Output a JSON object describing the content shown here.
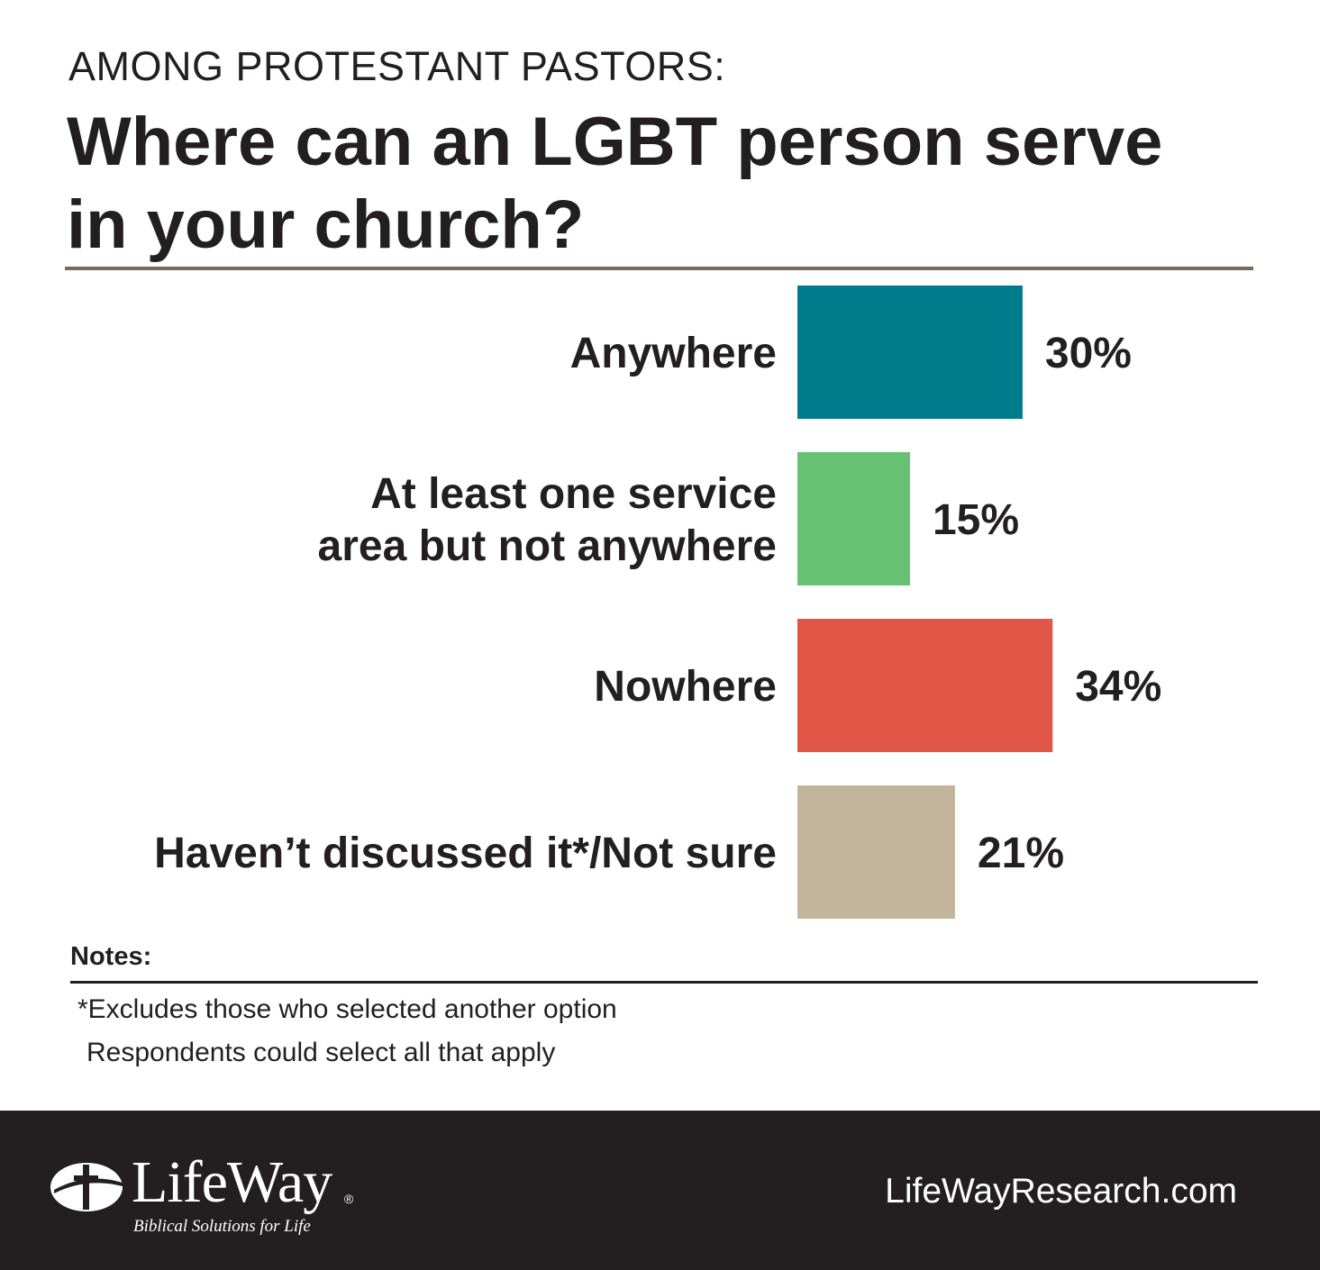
{
  "header": {
    "kicker": "AMONG PROTESTANT PASTORS:",
    "title": "Where can an LGBT person serve in your church?"
  },
  "chart_data": {
    "type": "bar",
    "orientation": "horizontal",
    "categories": [
      [
        "Anywhere"
      ],
      [
        "At least one service",
        "area but not anywhere"
      ],
      [
        "Nowhere"
      ],
      [
        "Haven’t discussed it*/Not sure"
      ]
    ],
    "values": [
      30,
      15,
      34,
      21
    ],
    "value_labels": [
      "30%",
      "15%",
      "34%",
      "21%"
    ],
    "colors": [
      "#007b8c",
      "#66c172",
      "#e15647",
      "#c3b59c"
    ],
    "xlim": [
      0,
      100
    ],
    "grid": false,
    "legend": "none"
  },
  "notes": {
    "label": "Notes:",
    "lines": [
      "*Excludes those who selected another option",
      "Respondents could select all that apply"
    ]
  },
  "footer": {
    "brand": "LifeWay",
    "tagline": "Biblical Solutions for Life",
    "registered": "®",
    "website": "LifeWayResearch.com",
    "logo_icon": "cross-circle-icon"
  }
}
